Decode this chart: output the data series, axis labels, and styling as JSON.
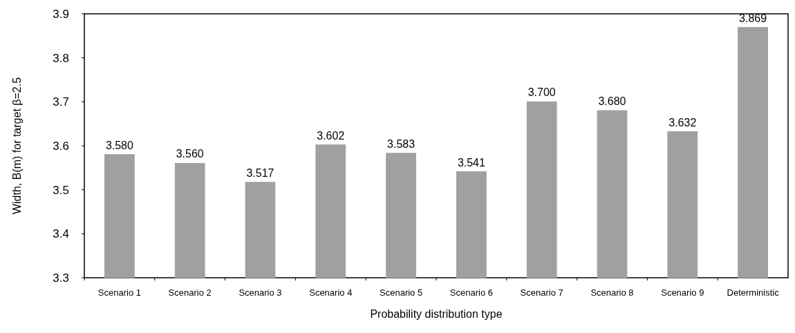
{
  "chart_data": {
    "type": "bar",
    "xlabel": "Probability distribution type",
    "ylabel": "Width, B(m) for target β=2.5",
    "categories": [
      "Scenario 1",
      "Scenario 2",
      "Scenario 3",
      "Scenario 4",
      "Scenario 5",
      "Scenario 6",
      "Scenario 7",
      "Scenario 8",
      "Scenario 9",
      "Deterministic"
    ],
    "values": [
      3.58,
      3.56,
      3.517,
      3.602,
      3.583,
      3.541,
      3.7,
      3.68,
      3.632,
      3.869
    ],
    "color": "#a0a0a0",
    "ylim": [
      3.3,
      3.9
    ],
    "yticks": [
      3.3,
      3.4,
      3.5,
      3.6,
      3.7,
      3.8,
      3.9
    ],
    "value_labels": [
      "3.580",
      "3.560",
      "3.517",
      "3.602",
      "3.583",
      "3.541",
      "3.700",
      "3.680",
      "3.632",
      "3.869"
    ],
    "grid": false
  }
}
